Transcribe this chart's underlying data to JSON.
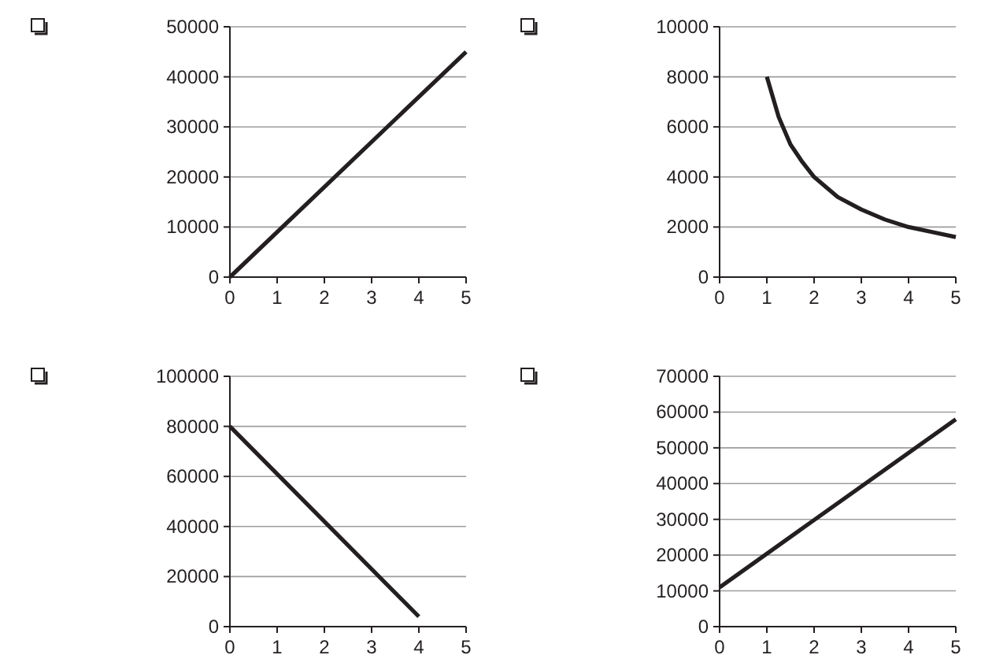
{
  "chart_data": [
    {
      "type": "line",
      "x": [
        0,
        5
      ],
      "series": [
        {
          "color": "#231f20",
          "values": [
            0,
            45000
          ]
        }
      ],
      "xlim": [
        0,
        5
      ],
      "xticks": [
        0,
        1,
        2,
        3,
        4,
        5
      ],
      "ylim": [
        0,
        50000
      ],
      "yticks": [
        0,
        10000,
        20000,
        30000,
        40000,
        50000
      ],
      "grid": "y",
      "marker": "none"
    },
    {
      "type": "line",
      "x": [
        1,
        1.25,
        1.5,
        1.75,
        2,
        2.5,
        3,
        3.5,
        4,
        4.5,
        5
      ],
      "series": [
        {
          "color": "#231f20",
          "values": [
            8000,
            6400,
            5300,
            4600,
            4000,
            3200,
            2700,
            2300,
            2000,
            1800,
            1600
          ]
        }
      ],
      "xlim": [
        0,
        5
      ],
      "xticks": [
        0,
        1,
        2,
        3,
        4,
        5
      ],
      "ylim": [
        0,
        10000
      ],
      "yticks": [
        0,
        2000,
        4000,
        6000,
        8000,
        10000
      ],
      "grid": "y",
      "marker": "none"
    },
    {
      "type": "line",
      "x": [
        0,
        4
      ],
      "series": [
        {
          "color": "#231f20",
          "values": [
            80000,
            4000
          ]
        }
      ],
      "xlim": [
        0,
        5
      ],
      "xticks": [
        0,
        1,
        2,
        3,
        4,
        5
      ],
      "ylim": [
        0,
        100000
      ],
      "yticks": [
        0,
        20000,
        40000,
        60000,
        80000,
        100000
      ],
      "grid": "y",
      "marker": "none"
    },
    {
      "type": "line",
      "x": [
        0,
        5
      ],
      "series": [
        {
          "color": "#231f20",
          "values": [
            11000,
            58000
          ]
        }
      ],
      "xlim": [
        0,
        5
      ],
      "xticks": [
        0,
        1,
        2,
        3,
        4,
        5
      ],
      "ylim": [
        0,
        70000
      ],
      "yticks": [
        0,
        10000,
        20000,
        30000,
        40000,
        50000,
        60000,
        70000
      ],
      "grid": "y",
      "marker": "none"
    }
  ]
}
